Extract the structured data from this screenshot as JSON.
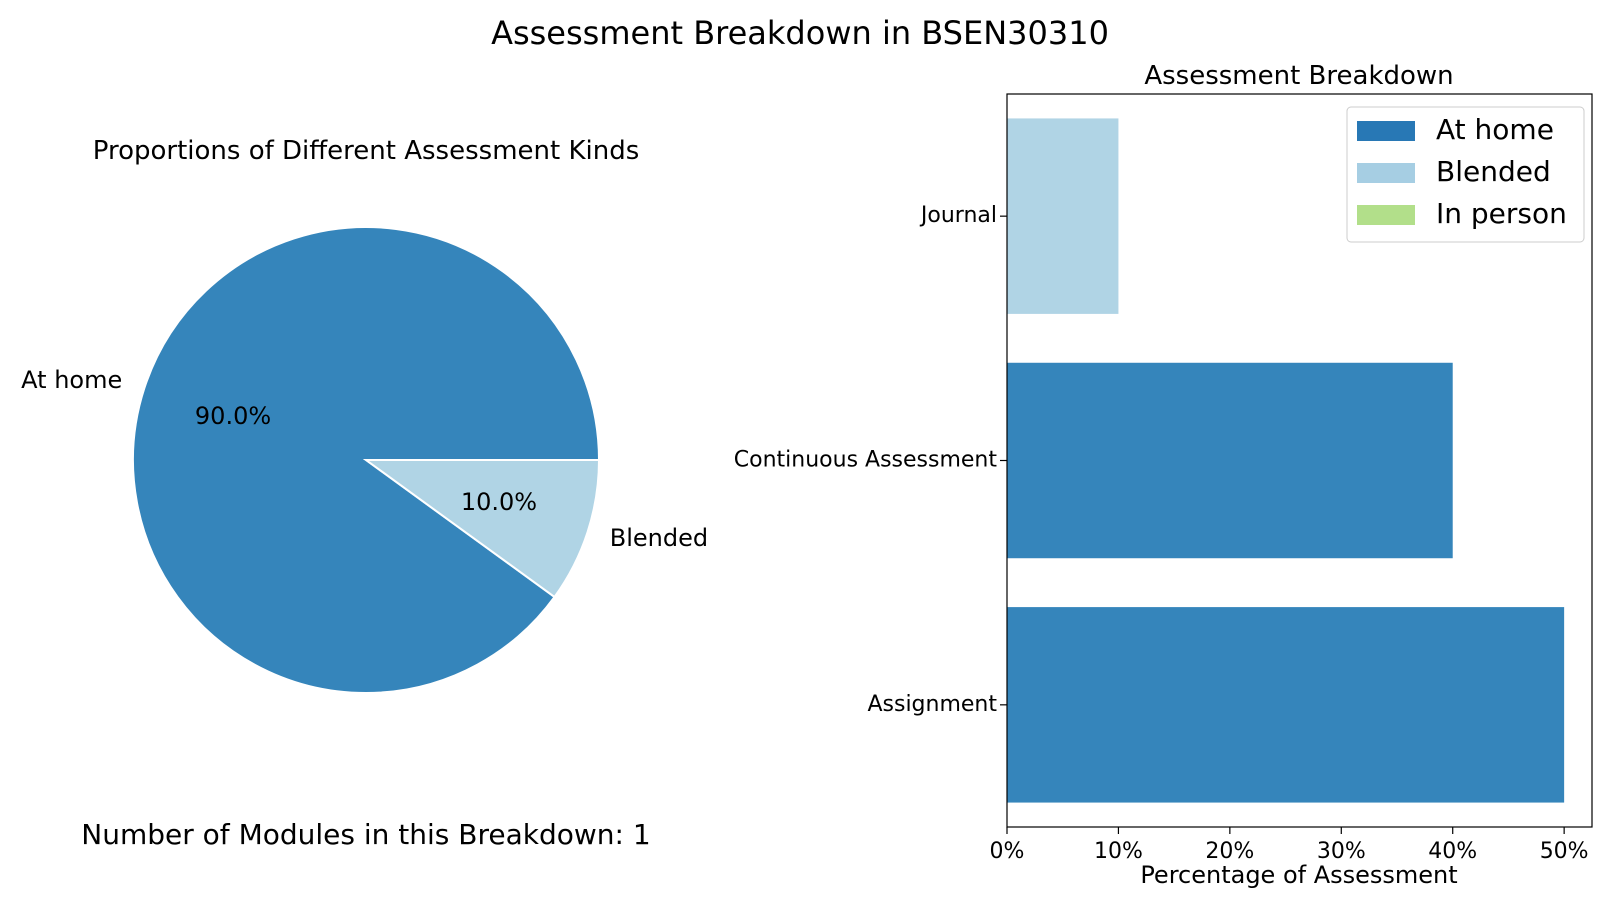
{
  "figure": {
    "title": "Assessment Breakdown in BSEN30310"
  },
  "colors": {
    "at_home": "#3585bb",
    "blended": "#b0d4e5",
    "in_person": "#b2df8a",
    "legend_at_home": "#2878b5",
    "legend_blended": "#a6cee3"
  },
  "chart_data": [
    {
      "type": "pie",
      "title": "Proportions of Different Assessment Kinds",
      "slices": [
        {
          "label": "At home",
          "value": 90.0,
          "pct_label": "90.0%",
          "color": "#3585bb"
        },
        {
          "label": "Blended",
          "value": 10.0,
          "pct_label": "10.0%",
          "color": "#b0d4e5"
        }
      ],
      "footer": "Number of Modules in this Breakdown: 1"
    },
    {
      "type": "bar",
      "orientation": "horizontal",
      "title": "Assessment Breakdown",
      "xlabel": "Percentage of Assessment",
      "ylabel": "",
      "xlim": [
        0,
        52.5
      ],
      "xticks": [
        0,
        10,
        20,
        30,
        40,
        50
      ],
      "xtick_labels": [
        "0%",
        "10%",
        "20%",
        "30%",
        "40%",
        "50%"
      ],
      "categories": [
        "Assignment",
        "Continuous Assessment",
        "Journal"
      ],
      "series": [
        {
          "name": "At home",
          "values": [
            50,
            40,
            0
          ],
          "color": "#3585bb",
          "legend_color": "#2878b5"
        },
        {
          "name": "Blended",
          "values": [
            0,
            0,
            10
          ],
          "color": "#b0d4e5",
          "legend_color": "#a6cee3"
        },
        {
          "name": "In person",
          "values": [
            0,
            0,
            0
          ],
          "color": "#b2df8a",
          "legend_color": "#b2df8a"
        }
      ],
      "legend_position": "top-right",
      "grid": false
    }
  ]
}
